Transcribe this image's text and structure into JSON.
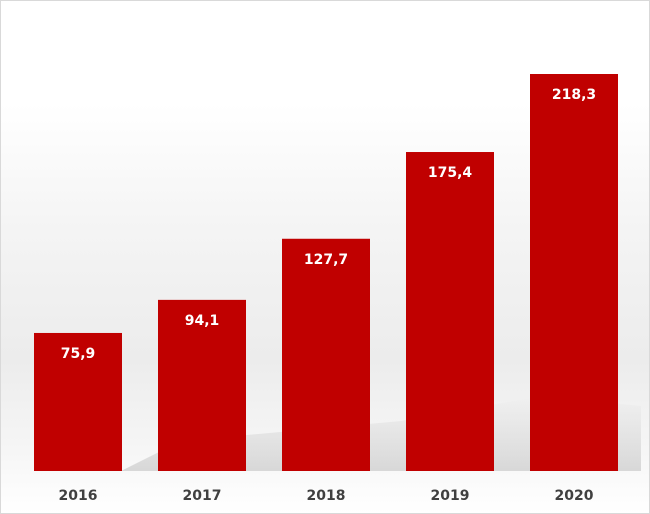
{
  "chart_data": {
    "type": "bar",
    "categories": [
      "2016",
      "2017",
      "2018",
      "2019",
      "2020"
    ],
    "values": [
      75.9,
      94.1,
      127.7,
      175.4,
      218.3
    ],
    "value_labels": [
      "75,9",
      "94,1",
      "127,7",
      "175,4",
      "218,3"
    ],
    "title": "",
    "xlabel": "",
    "ylabel": "",
    "ylim": [
      0,
      218.3
    ],
    "grid": false,
    "legend": "none",
    "colors": {
      "bar": "#c00000",
      "value_label": "#ffffff",
      "tick_label": "#404040"
    }
  }
}
